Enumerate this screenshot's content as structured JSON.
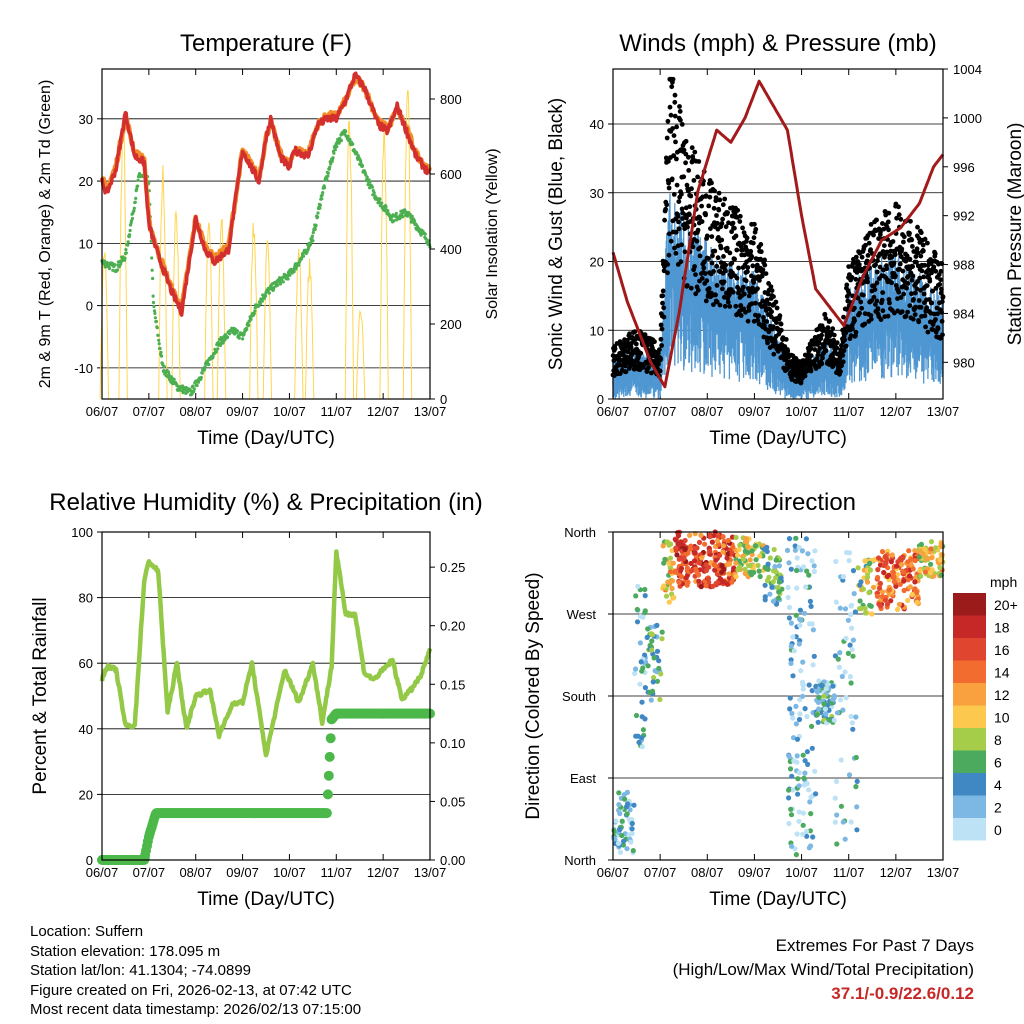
{
  "days": [
    "06/07",
    "07/07",
    "08/07",
    "09/07",
    "10/07",
    "11/07",
    "12/07",
    "13/07"
  ],
  "colors": {
    "red": "#d32f2f",
    "orange": "#f28c28",
    "green": "#4caf50",
    "yellow": "#ffd54f",
    "black": "#000000",
    "blue": "#4f97d2",
    "maroon": "#a31a1a",
    "rh": "#93c947",
    "precip": "#4cb84a"
  },
  "chart_data": [
    {
      "type": "line",
      "title": "Temperature (F)",
      "xlabel": "Time (Day/UTC)",
      "ylabel_left": "2m & 9m T (Red, Orange) & 2m Td (Green)",
      "ylabel_right": "Solar Insolation (Yellow)",
      "ylim": [
        -15,
        38
      ],
      "yticks": [
        -10,
        0,
        10,
        20,
        30
      ],
      "y2lim": [
        0,
        880
      ],
      "y2ticks": [
        0,
        200,
        400,
        600,
        800
      ],
      "series": [
        {
          "name": "2m T",
          "color": "red",
          "x": [
            0,
            0.1,
            0.3,
            0.5,
            0.7,
            0.9,
            1.0,
            1.2,
            1.5,
            1.7,
            2.0,
            2.2,
            2.4,
            2.7,
            3.0,
            3.2,
            3.35,
            3.5,
            3.6,
            3.8,
            4.0,
            4.1,
            4.4,
            4.6,
            4.8,
            5.0,
            5.2,
            5.4,
            5.5,
            5.6,
            5.9,
            6.1,
            6.3,
            6.5,
            6.7,
            7.0
          ],
          "y": [
            20,
            18,
            22,
            31,
            24,
            23,
            13,
            8,
            2,
            -1,
            14,
            9,
            7,
            9,
            25,
            22,
            20,
            27,
            30,
            24,
            22,
            25,
            24,
            29,
            30,
            30,
            33,
            37,
            36,
            35,
            29,
            28,
            32,
            28,
            24,
            21
          ]
        },
        {
          "name": "9m T",
          "color": "orange",
          "x": [
            0,
            0.1,
            0.3,
            0.5,
            0.7,
            0.9,
            1.0,
            1.2,
            1.5,
            1.7,
            2.0,
            2.2,
            2.4,
            2.7,
            3.0,
            3.2,
            3.35,
            3.5,
            3.6,
            3.8,
            4.0,
            4.1,
            4.4,
            4.6,
            4.8,
            5.0,
            5.2,
            5.4,
            5.5,
            5.6,
            5.9,
            6.1,
            6.3,
            6.5,
            6.7,
            7.0
          ],
          "y": [
            20.5,
            18.5,
            22.5,
            30.5,
            24.5,
            23.5,
            13.5,
            8.5,
            2.5,
            -0.5,
            14,
            9.5,
            7.5,
            9.5,
            25,
            22.5,
            20.5,
            27,
            29.5,
            24.5,
            22.5,
            25,
            24.5,
            29,
            30.5,
            30.5,
            33,
            36.5,
            36,
            35,
            29.5,
            28.5,
            31.5,
            28.5,
            24.5,
            21.5
          ]
        },
        {
          "name": "2m Td",
          "color": "green",
          "x": [
            0,
            0.3,
            0.5,
            0.8,
            1.0,
            1.1,
            1.3,
            1.6,
            1.9,
            2.2,
            2.5,
            2.8,
            3.0,
            3.3,
            3.5,
            3.8,
            4.0,
            4.3,
            4.5,
            4.7,
            5.0,
            5.2,
            5.5,
            5.8,
            6.0,
            6.2,
            6.5,
            6.8,
            7.0
          ],
          "y": [
            7,
            6,
            8,
            21,
            20,
            0,
            -10,
            -13,
            -14,
            -10,
            -6,
            -4,
            -5,
            0,
            2,
            4,
            5,
            8,
            11,
            18,
            26,
            28,
            23,
            18,
            16,
            14,
            15,
            12,
            10
          ]
        },
        {
          "name": "Solar Insolation",
          "color": "yellow",
          "axis": "right",
          "peaks_x": [
            0.05,
            0.45,
            1.3,
            1.58,
            2.28,
            2.55,
            3.24,
            3.53,
            4.2,
            4.43,
            5.28,
            5.52,
            6.02,
            6.52
          ],
          "peaks_y": [
            420,
            780,
            640,
            540,
            520,
            500,
            500,
            430,
            420,
            380,
            800,
            250,
            760,
            880
          ]
        }
      ]
    },
    {
      "type": "scatter",
      "title": "Winds (mph) & Pressure (mb)",
      "xlabel": "Time (Day/UTC)",
      "ylabel_left": "Sonic Wind & Gust (Blue, Black)",
      "ylabel_right": "Station Pressure (Maroon)",
      "ylim": [
        0,
        48
      ],
      "yticks": [
        0,
        10,
        20,
        30,
        40
      ],
      "y2lim": [
        977,
        1004
      ],
      "y2ticks": [
        980,
        984,
        988,
        992,
        996,
        1000,
        1004
      ],
      "wind_series": [
        {
          "name": "Sonic Wind",
          "color": "blue",
          "x": [
            0,
            0.5,
            1.0,
            1.2,
            1.5,
            2.0,
            2.5,
            3.0,
            3.5,
            3.8,
            4.0,
            4.5,
            4.8,
            5.0,
            5.5,
            6.0,
            6.5,
            7.0
          ],
          "y": [
            3,
            4,
            3,
            20,
            16,
            14,
            12,
            11,
            5,
            2,
            2,
            5,
            3,
            10,
            12,
            13,
            11,
            9
          ]
        },
        {
          "name": "Gust",
          "color": "black",
          "x": [
            0,
            0.5,
            1.0,
            1.2,
            1.5,
            2.0,
            2.5,
            3.0,
            3.5,
            3.8,
            4.0,
            4.5,
            4.8,
            5.0,
            5.5,
            6.0,
            6.5,
            7.0
          ],
          "y": [
            6,
            8,
            6,
            40,
            30,
            25,
            22,
            20,
            10,
            5,
            4,
            10,
            6,
            15,
            20,
            22,
            19,
            15
          ],
          "max": 46.5
        }
      ],
      "pressure": {
        "name": "Station Pressure",
        "color": "maroon",
        "x": [
          0,
          0.3,
          0.6,
          0.8,
          1.1,
          1.4,
          1.8,
          2.2,
          2.5,
          2.8,
          3.1,
          3.4,
          3.7,
          4.0,
          4.3,
          4.7,
          4.9,
          5.3,
          5.7,
          6.1,
          6.5,
          6.8,
          7.0
        ],
        "y": [
          989,
          985,
          982,
          980,
          978,
          984,
          994,
          999,
          998,
          1000,
          1003,
          1001,
          999,
          992,
          986,
          984,
          983,
          987,
          990,
          991,
          993,
          996,
          997
        ]
      }
    },
    {
      "type": "line",
      "title": "Relative Humidity (%) & Precipitation (in)",
      "xlabel": "Time (Day/UTC)",
      "ylabel_left": "Percent & Total Rainfall",
      "ylim": [
        0,
        100
      ],
      "yticks": [
        0,
        20,
        40,
        60,
        80,
        100
      ],
      "y2lim": [
        0,
        0.28
      ],
      "y2ticks": [
        "0.00",
        "0.05",
        "0.10",
        "0.15",
        "0.20",
        "0.25"
      ],
      "series": [
        {
          "name": "Relative Humidity",
          "color": "rh",
          "x": [
            0,
            0.1,
            0.3,
            0.5,
            0.7,
            0.9,
            1.0,
            1.2,
            1.4,
            1.6,
            1.8,
            2.0,
            2.3,
            2.5,
            2.8,
            3.0,
            3.2,
            3.5,
            3.7,
            3.9,
            4.2,
            4.5,
            4.7,
            4.9,
            5.0,
            5.2,
            5.4,
            5.6,
            5.8,
            6.0,
            6.2,
            6.4,
            6.6,
            6.8,
            7.0
          ],
          "y": [
            55,
            59,
            58,
            41,
            41,
            85,
            91,
            88,
            45,
            60,
            40,
            50,
            52,
            38,
            48,
            48,
            60,
            32,
            45,
            58,
            48,
            60,
            42,
            59,
            94,
            75,
            75,
            57,
            55,
            58,
            61,
            49,
            52,
            56,
            64
          ]
        },
        {
          "name": "Total Precipitation",
          "color": "precip",
          "axis": "right",
          "x": [
            0,
            0.5,
            0.9,
            1.0,
            1.15,
            1.4,
            2.0,
            3.0,
            4.0,
            4.8,
            4.85,
            4.9,
            5.0,
            5.5,
            6.0,
            6.5,
            7.0
          ],
          "y": [
            0,
            0,
            0,
            0.02,
            0.04,
            0.04,
            0.04,
            0.04,
            0.04,
            0.04,
            0.08,
            0.12,
            0.125,
            0.125,
            0.125,
            0.125,
            0.125
          ]
        }
      ]
    },
    {
      "type": "scatter",
      "title": "Wind Direction",
      "xlabel": "Time (Day/UTC)",
      "ylabel_left": "Direction (Colored By Speed)",
      "yticks": [
        "North",
        "East",
        "South",
        "West",
        "North"
      ],
      "ylim": [
        0,
        360
      ],
      "colorbar": {
        "unit": "mph",
        "labels": [
          "20+",
          "18",
          "16",
          "14",
          "12",
          "10",
          "8",
          "6",
          "4",
          "2",
          "0"
        ],
        "colors": [
          "#9b1b1b",
          "#c62828",
          "#e0452f",
          "#f26b2f",
          "#f9a03f",
          "#fcc94e",
          "#a5cd4a",
          "#4caa5e",
          "#3f88c4",
          "#7cb8e3",
          "#bde2f5"
        ]
      },
      "clusters": [
        {
          "x0": 0.0,
          "x1": 0.45,
          "y0": 8,
          "y1": 75,
          "speed": 3,
          "n": 60
        },
        {
          "x0": 0.45,
          "x1": 0.7,
          "y0": 120,
          "y1": 310,
          "speed": 3,
          "n": 40
        },
        {
          "x0": 0.7,
          "x1": 1.05,
          "y0": 170,
          "y1": 260,
          "speed": 4,
          "n": 40
        },
        {
          "x0": 1.05,
          "x1": 1.3,
          "y0": 280,
          "y1": 350,
          "speed": 10,
          "n": 40
        },
        {
          "x0": 1.3,
          "x1": 2.6,
          "y0": 300,
          "y1": 360,
          "speed": 16,
          "n": 220
        },
        {
          "x0": 2.6,
          "x1": 3.2,
          "y0": 310,
          "y1": 355,
          "speed": 9,
          "n": 70
        },
        {
          "x0": 3.2,
          "x1": 3.6,
          "y0": 280,
          "y1": 345,
          "speed": 5,
          "n": 50
        },
        {
          "x0": 3.7,
          "x1": 4.3,
          "y0": 5,
          "y1": 355,
          "speed": 2,
          "n": 140
        },
        {
          "x0": 4.3,
          "x1": 4.7,
          "y0": 150,
          "y1": 200,
          "speed": 4,
          "n": 80
        },
        {
          "x0": 4.7,
          "x1": 5.2,
          "y0": 10,
          "y1": 340,
          "speed": 2,
          "n": 60
        },
        {
          "x0": 5.2,
          "x1": 5.6,
          "y0": 270,
          "y1": 330,
          "speed": 8,
          "n": 40
        },
        {
          "x0": 5.6,
          "x1": 6.5,
          "y0": 275,
          "y1": 340,
          "speed": 14,
          "n": 150
        },
        {
          "x0": 6.5,
          "x1": 7.0,
          "y0": 310,
          "y1": 350,
          "speed": 10,
          "n": 80
        }
      ]
    }
  ],
  "footer": {
    "location": "Location: Suffern",
    "elevation": "Station elevation: 178.095 m",
    "latlon": "Station lat/lon: 41.1304; -74.0899",
    "created": "Figure created on Fri, 2026-02-13, at 07:42 UTC",
    "timestamp": "Most recent data timestamp: 2026/02/13 07:15:00",
    "extremes_title": "Extremes For Past 7 Days",
    "extremes_sub": "(High/Low/Max Wind/Total Precipitation)",
    "extremes_values": "37.1/-0.9/22.6/0.12"
  }
}
